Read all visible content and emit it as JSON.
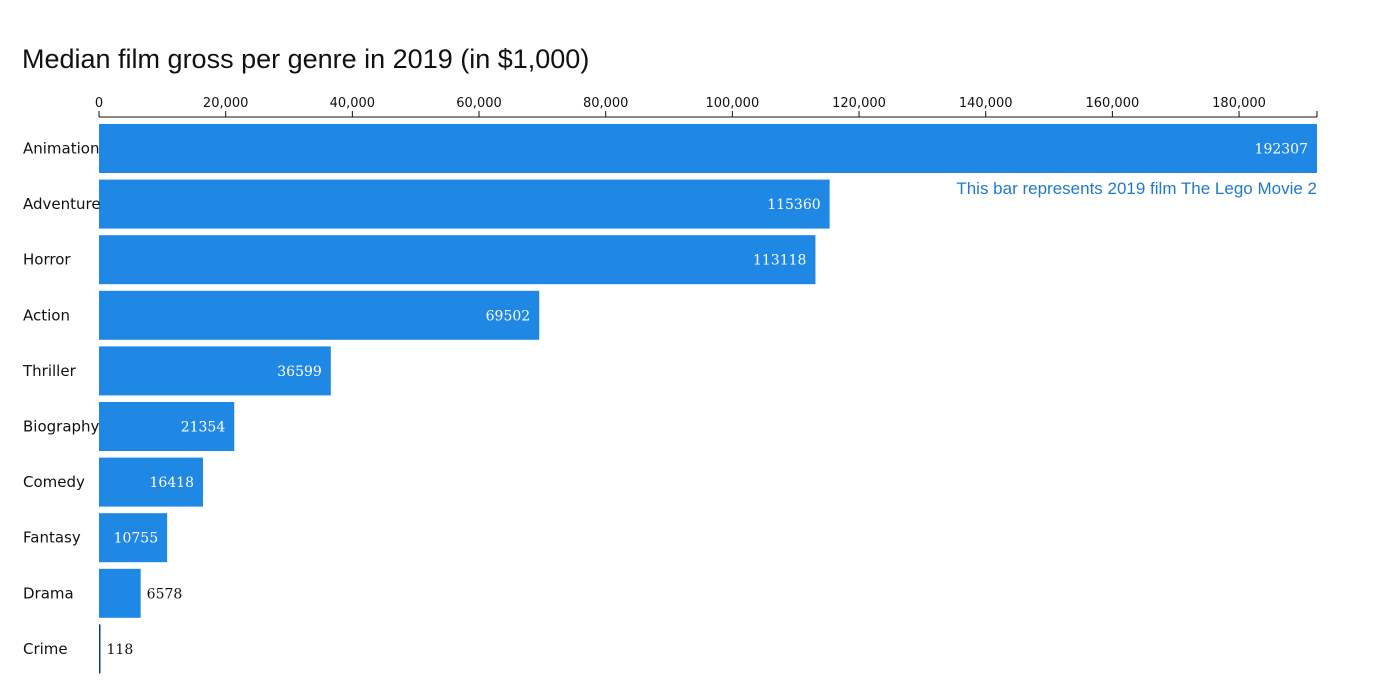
{
  "chart_data": {
    "type": "bar",
    "orientation": "horizontal",
    "title": "Median film gross per genre in 2019 (in $1,000)",
    "xlabel": "",
    "ylabel": "",
    "categories": [
      "Animation",
      "Adventure",
      "Horror",
      "Action",
      "Thriller",
      "Biography",
      "Comedy",
      "Fantasy",
      "Drama",
      "Crime"
    ],
    "values": [
      192307,
      115360,
      113118,
      69502,
      36599,
      21354,
      16418,
      10755,
      6578,
      118
    ],
    "value_labels": [
      "192307",
      "115360",
      "113118",
      "69502",
      "36599",
      "21354",
      "16418",
      "10755",
      "6578",
      "118"
    ],
    "xlim": [
      0,
      192307
    ],
    "ticks": [
      0,
      20000,
      40000,
      60000,
      80000,
      100000,
      120000,
      140000,
      160000,
      180000
    ],
    "tick_labels": [
      "0",
      "20,000",
      "40,000",
      "60,000",
      "80,000",
      "100,000",
      "120,000",
      "140,000",
      "160,000",
      "180,000"
    ],
    "axis_position": "top",
    "grid": false,
    "legend": "none",
    "bar_color": "#1f88e5",
    "annotation": {
      "text": "This bar represents 2019 film The Lego Movie 2",
      "category": "Animation",
      "color": "#1f7acc"
    }
  }
}
